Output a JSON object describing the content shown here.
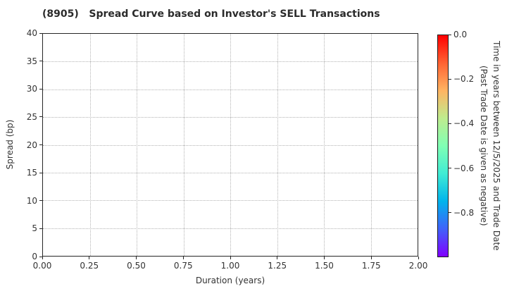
{
  "chart_data": {
    "type": "scatter",
    "title": "(8905)   Spread Curve based on Investor's SELL Transactions",
    "xlabel": "Duration (years)",
    "ylabel": "Spread (bp)",
    "xlim": [
      0.0,
      2.0
    ],
    "ylim": [
      0,
      40
    ],
    "x_ticks": {
      "values": [
        0.0,
        0.25,
        0.5,
        0.75,
        1.0,
        1.25,
        1.5,
        1.75,
        2.0
      ],
      "labels": [
        "0.00",
        "0.25",
        "0.50",
        "0.75",
        "1.00",
        "1.25",
        "1.50",
        "1.75",
        "2.00"
      ]
    },
    "y_ticks": {
      "values": [
        0,
        5,
        10,
        15,
        20,
        25,
        30,
        35,
        40
      ],
      "labels": [
        "0",
        "5",
        "10",
        "15",
        "20",
        "25",
        "30",
        "35",
        "40"
      ]
    },
    "grid": {
      "visible": true,
      "style": "dotted",
      "color": "#b3b3b3"
    },
    "points": [],
    "colorbar": {
      "label": [
        "Time in years between 12/5/2025 and Trade Date",
        "(Past Trade Date is given as negative)"
      ],
      "ticks": {
        "values": [
          0.0,
          -0.2,
          -0.4,
          -0.6,
          -0.8
        ],
        "labels": [
          "0.0",
          "−0.2",
          "−0.4",
          "−0.6",
          "−0.8"
        ]
      },
      "range": [
        0.0,
        -1.0
      ],
      "colormap": "rainbow",
      "gradient_top_to_bottom": [
        "#ff0000",
        "#ff6232",
        "#ffb462",
        "#bfec8e",
        "#80ffb4",
        "#40ecd4",
        "#00b4ec",
        "#4062fa",
        "#8000ff"
      ]
    },
    "colors": {
      "spine": "#262626",
      "text": "#333333",
      "grid": "#b3b3b3",
      "background": "#ffffff"
    }
  }
}
